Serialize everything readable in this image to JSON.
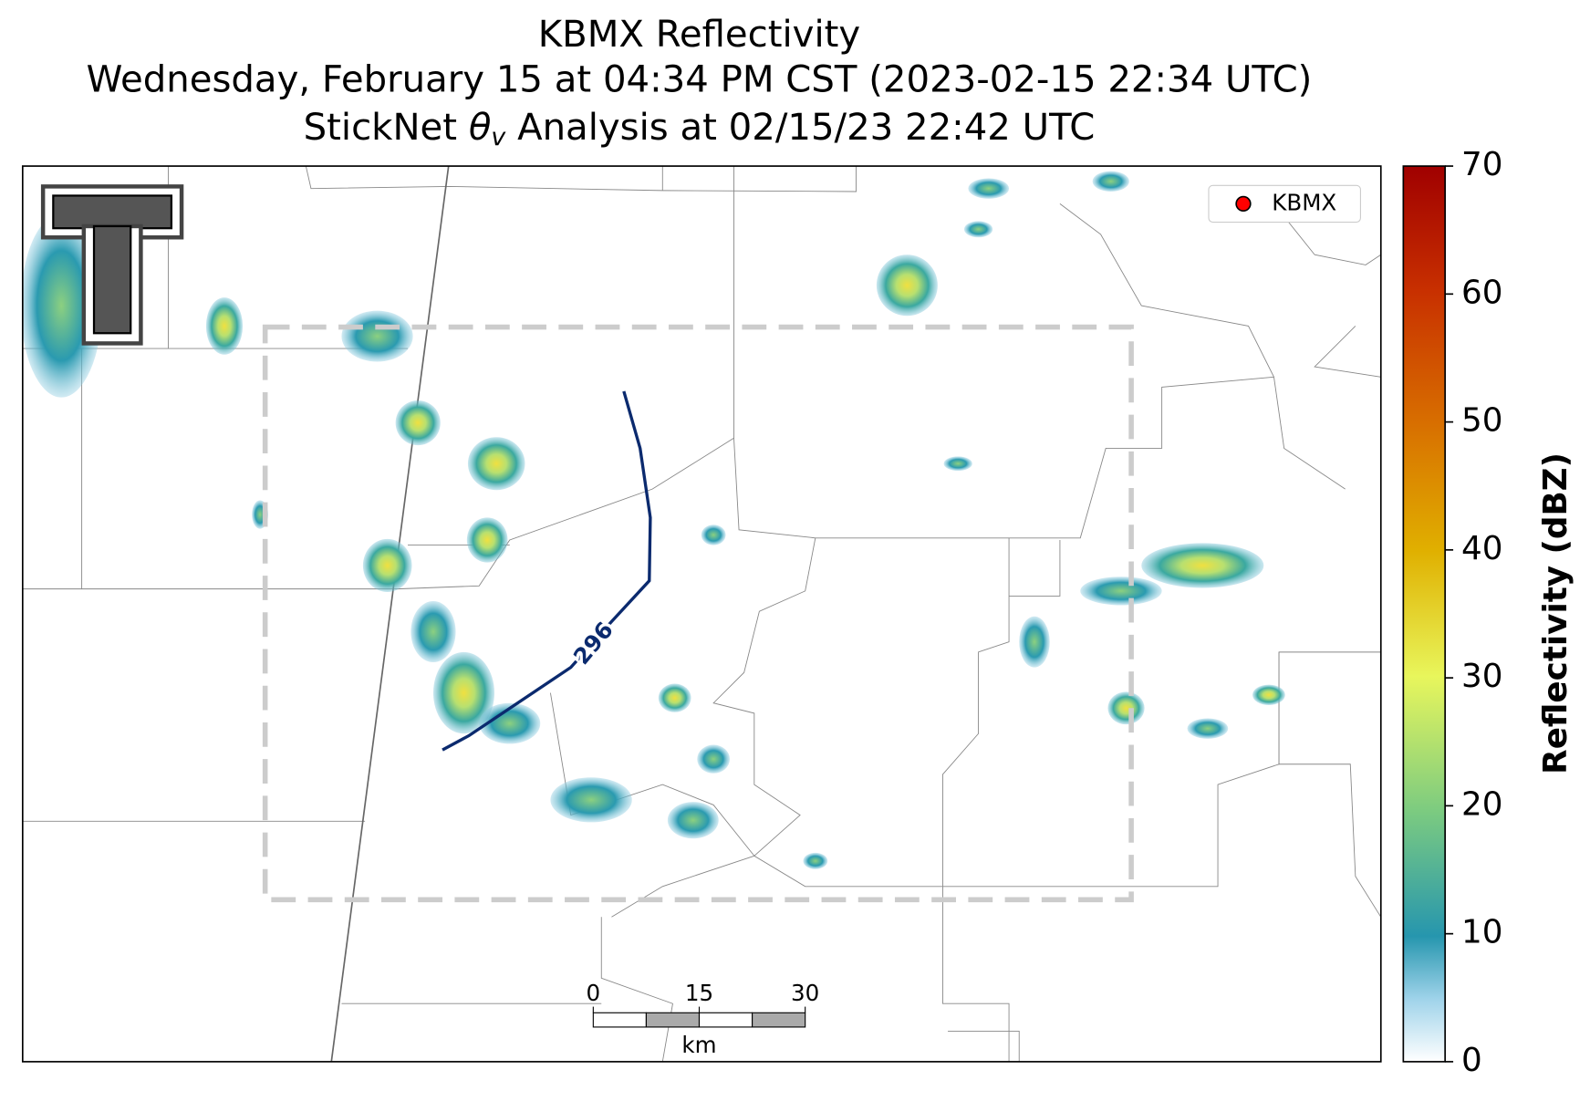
{
  "header": {
    "title_line1": "KBMX Reflectivity",
    "title_line2": "Wednesday, February 15 at 04:34 PM CST (2023-02-15 22:34 UTC)",
    "title_line3": {
      "pre": "StickNet ",
      "symbol": "θ",
      "sub": "v",
      "post": " Analysis at 02/15/23 22:42 UTC"
    }
  },
  "map": {
    "contour_label": "296",
    "legend": {
      "label": "KBMX",
      "color": "#ff0000"
    },
    "scale_bar": {
      "ticks": [
        0,
        15,
        30
      ],
      "unit": "km"
    }
  },
  "colorbar": {
    "label": "Reflectivity (dBZ)",
    "range": [
      0,
      70
    ],
    "ticks": [
      0,
      10,
      20,
      30,
      40,
      50,
      60,
      70
    ]
  }
}
